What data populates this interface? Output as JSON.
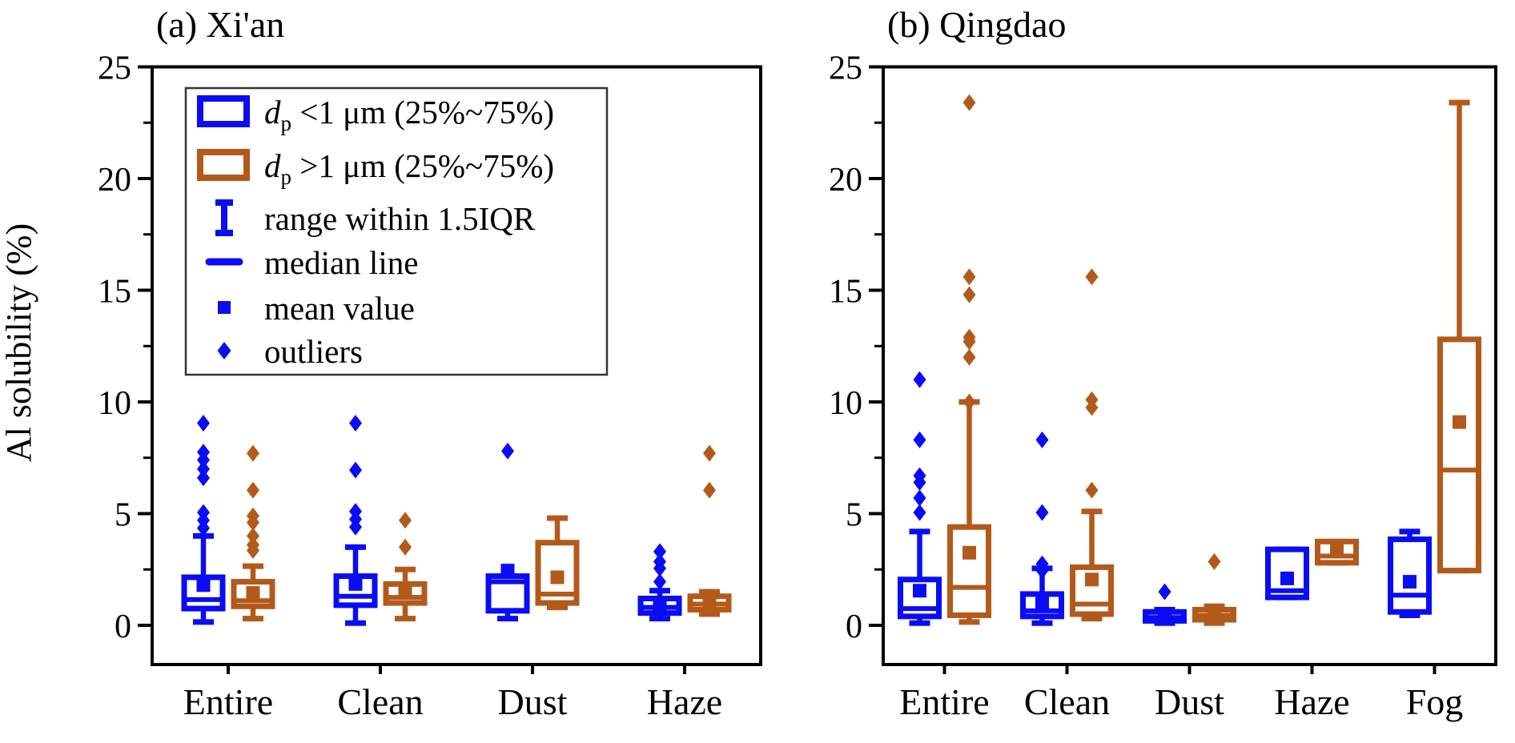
{
  "figure": {
    "ylabel": "Al solubility (%)",
    "panel_a_title": "(a) Xi'an",
    "panel_b_title": "(b) Qingdao"
  },
  "chart_data": [
    {
      "type": "box",
      "title": "(a) Xi'an",
      "ylabel": "Al solubility (%)",
      "ylim": [
        -1.75,
        25
      ],
      "yticks": [
        0,
        5,
        10,
        15,
        20,
        25
      ],
      "yticks_minor": [
        2.5,
        7.5,
        12.5,
        17.5,
        22.5
      ],
      "grid": false,
      "categories": [
        "Entire",
        "Clean",
        "Dust",
        "Haze"
      ],
      "series": [
        {
          "name": "dp <1 μm (25%~75%)",
          "color": "#0a0cf5",
          "boxes": [
            {
              "whisker_low": 0.15,
              "q1": 0.75,
              "median": 1.15,
              "q3": 2.15,
              "whisker_high": 4.0,
              "mean": 1.8,
              "outliers": [
                4.35,
                4.7,
                5.05,
                6.6,
                7.0,
                7.4,
                7.75,
                9.05
              ]
            },
            {
              "whisker_low": 0.1,
              "q1": 0.9,
              "median": 1.3,
              "q3": 2.2,
              "whisker_high": 3.5,
              "mean": 1.85,
              "outliers": [
                4.4,
                4.75,
                5.1,
                6.95,
                9.05
              ]
            },
            {
              "whisker_low": 0.3,
              "q1": 0.65,
              "median": 1.95,
              "q3": 2.2,
              "whisker_high": 2.2,
              "mean": 2.45,
              "outliers": [
                7.8
              ]
            },
            {
              "whisker_low": 0.3,
              "q1": 0.55,
              "median": 0.8,
              "q3": 1.2,
              "whisker_high": 1.55,
              "mean": 0.85,
              "outliers": [
                1.95,
                2.55,
                2.85,
                3.3
              ]
            }
          ]
        },
        {
          "name": "dp >1 μm (25%~75%)",
          "color": "#b35a1b",
          "boxes": [
            {
              "whisker_low": 0.3,
              "q1": 0.85,
              "median": 1.1,
              "q3": 1.95,
              "whisker_high": 2.65,
              "mean": 1.45,
              "outliers": [
                3.35,
                3.6,
                4.0,
                4.6,
                4.9,
                6.05,
                7.7
              ]
            },
            {
              "whisker_low": 0.3,
              "q1": 1.0,
              "median": 1.25,
              "q3": 1.85,
              "whisker_high": 2.5,
              "mean": 1.55,
              "outliers": [
                3.5,
                4.7
              ]
            },
            {
              "whisker_low": 0.8,
              "q1": 1.0,
              "median": 1.4,
              "q3": 3.7,
              "whisker_high": 4.8,
              "mean": 2.15,
              "outliers": []
            },
            {
              "whisker_low": 0.5,
              "q1": 0.7,
              "median": 0.95,
              "q3": 1.3,
              "whisker_high": 1.5,
              "mean": 1.0,
              "outliers": [
                6.05,
                7.7
              ]
            }
          ]
        }
      ],
      "legend": {
        "items": [
          {
            "marker": "box",
            "color": "#0a0cf5",
            "d": "d",
            "sub": "p",
            "rest": " <1 μm (25%~75%)"
          },
          {
            "marker": "box",
            "color": "#b35a1b",
            "d": "d",
            "sub": "p",
            "rest": " >1 μm (25%~75%)"
          },
          {
            "marker": "errorbar",
            "color": "#0a0cf5",
            "label": "range within 1.5IQR"
          },
          {
            "marker": "median-dash",
            "color": "#0a0cf5",
            "label": "median line"
          },
          {
            "marker": "mean-square",
            "color": "#0a0cf5",
            "label": "mean value"
          },
          {
            "marker": "outlier-diamond",
            "color": "#0a0cf5",
            "label": "outliers"
          }
        ]
      }
    },
    {
      "type": "box",
      "title": "(b) Qingdao",
      "ylabel": "Al solubility (%)",
      "ylim": [
        -1.75,
        25
      ],
      "yticks": [
        0,
        5,
        10,
        15,
        20,
        25
      ],
      "yticks_minor": [
        2.5,
        7.5,
        12.5,
        17.5,
        22.5
      ],
      "grid": false,
      "categories": [
        "Entire",
        "Clean",
        "Dust",
        "Haze",
        "Fog"
      ],
      "series": [
        {
          "name": "dp <1 μm (25%~75%)",
          "color": "#0a0cf5",
          "boxes": [
            {
              "whisker_low": 0.1,
              "q1": 0.4,
              "median": 0.75,
              "q3": 2.05,
              "whisker_high": 4.2,
              "mean": 1.55,
              "outliers": [
                5.05,
                5.7,
                6.4,
                6.7,
                8.3,
                11.0
              ]
            },
            {
              "whisker_low": 0.1,
              "q1": 0.4,
              "median": 0.65,
              "q3": 1.4,
              "whisker_high": 2.55,
              "mean": 1.05,
              "outliers": [
                2.45,
                2.75,
                5.05,
                8.3
              ]
            },
            {
              "whisker_low": 0.1,
              "q1": 0.2,
              "median": 0.35,
              "q3": 0.6,
              "whisker_high": 0.7,
              "mean": 0.4,
              "outliers": [
                1.5
              ]
            },
            {
              "whisker_low": 1.25,
              "q1": 1.25,
              "median": 1.55,
              "q3": 3.4,
              "whisker_high": 3.4,
              "mean": 2.1,
              "outliers": []
            },
            {
              "whisker_low": 0.45,
              "q1": 0.6,
              "median": 1.35,
              "q3": 3.85,
              "whisker_high": 4.2,
              "mean": 1.95,
              "outliers": []
            }
          ]
        },
        {
          "name": "dp >1 μm (25%~75%)",
          "color": "#b35a1b",
          "boxes": [
            {
              "whisker_low": 0.15,
              "q1": 0.45,
              "median": 1.7,
              "q3": 4.4,
              "whisker_high": 10.0,
              "mean": 3.25,
              "outliers": [
                10.0,
                12.0,
                12.7,
                12.9,
                14.8,
                15.6,
                23.4
              ]
            },
            {
              "whisker_low": 0.3,
              "q1": 0.5,
              "median": 0.95,
              "q3": 2.6,
              "whisker_high": 5.1,
              "mean": 2.05,
              "outliers": [
                6.05,
                9.75,
                10.1,
                15.6
              ]
            },
            {
              "whisker_low": 0.1,
              "q1": 0.25,
              "median": 0.45,
              "q3": 0.7,
              "whisker_high": 0.85,
              "mean": 0.5,
              "outliers": [
                2.85
              ]
            },
            {
              "whisker_low": 2.8,
              "q1": 2.8,
              "median": 3.1,
              "q3": 3.75,
              "whisker_high": 3.75,
              "mean": 3.4,
              "outliers": []
            },
            {
              "whisker_low": 2.45,
              "q1": 2.45,
              "median": 6.95,
              "q3": 12.8,
              "whisker_high": 23.4,
              "mean": 9.1,
              "outliers": []
            }
          ]
        }
      ],
      "legend": null
    }
  ]
}
